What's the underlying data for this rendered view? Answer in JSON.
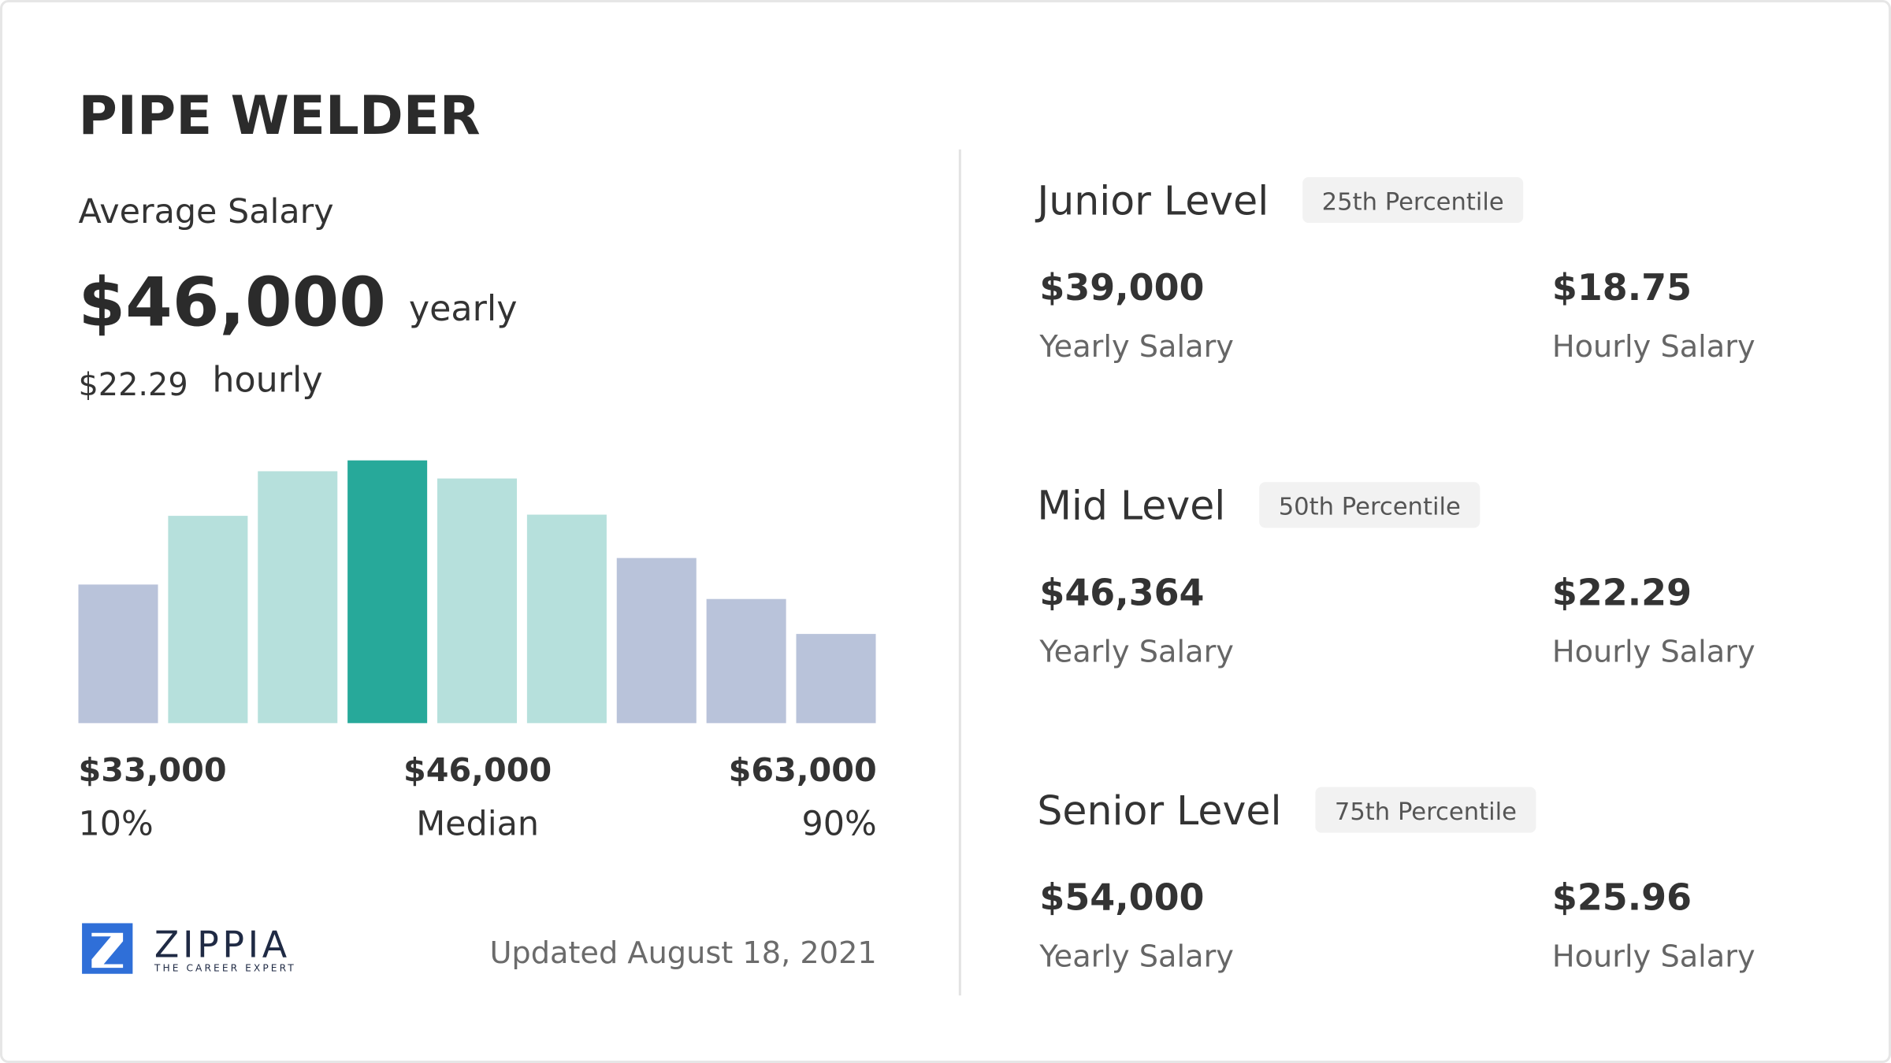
{
  "header": {
    "title": "PIPE WELDER"
  },
  "average": {
    "label": "Average Salary",
    "yearly": "$46,000",
    "yearly_unit": "yearly",
    "hourly": "$22.29",
    "hourly_unit": "hourly"
  },
  "histogram": {
    "values": [
      115,
      172,
      209,
      218,
      203,
      173,
      137,
      103,
      74
    ],
    "colors": [
      "#b9c3da",
      "#b6e0dc",
      "#b6e0dc",
      "#27a99a",
      "#b6e0dc",
      "#b6e0dc",
      "#b9c3da",
      "#b9c3da",
      "#b9c3da"
    ]
  },
  "range": [
    {
      "amount": "$33,000",
      "label": "10%"
    },
    {
      "amount": "$46,000",
      "label": "Median"
    },
    {
      "amount": "$63,000",
      "label": "90%"
    }
  ],
  "footer": {
    "brand": "ZIPPIA",
    "tagline": "THE CAREER EXPERT",
    "updated": "Updated August 18, 2021"
  },
  "levels": [
    {
      "name": "Junior Level",
      "percentile": "25th Percentile",
      "yearly": "$39,000",
      "yearly_label": "Yearly Salary",
      "hourly": "$18.75",
      "hourly_label": "Hourly Salary"
    },
    {
      "name": "Mid Level",
      "percentile": "50th Percentile",
      "yearly": "$46,364",
      "yearly_label": "Yearly Salary",
      "hourly": "$22.29",
      "hourly_label": "Hourly Salary"
    },
    {
      "name": "Senior Level",
      "percentile": "75th Percentile",
      "yearly": "$54,000",
      "yearly_label": "Yearly Salary",
      "hourly": "$25.96",
      "hourly_label": "Hourly Salary"
    }
  ]
}
